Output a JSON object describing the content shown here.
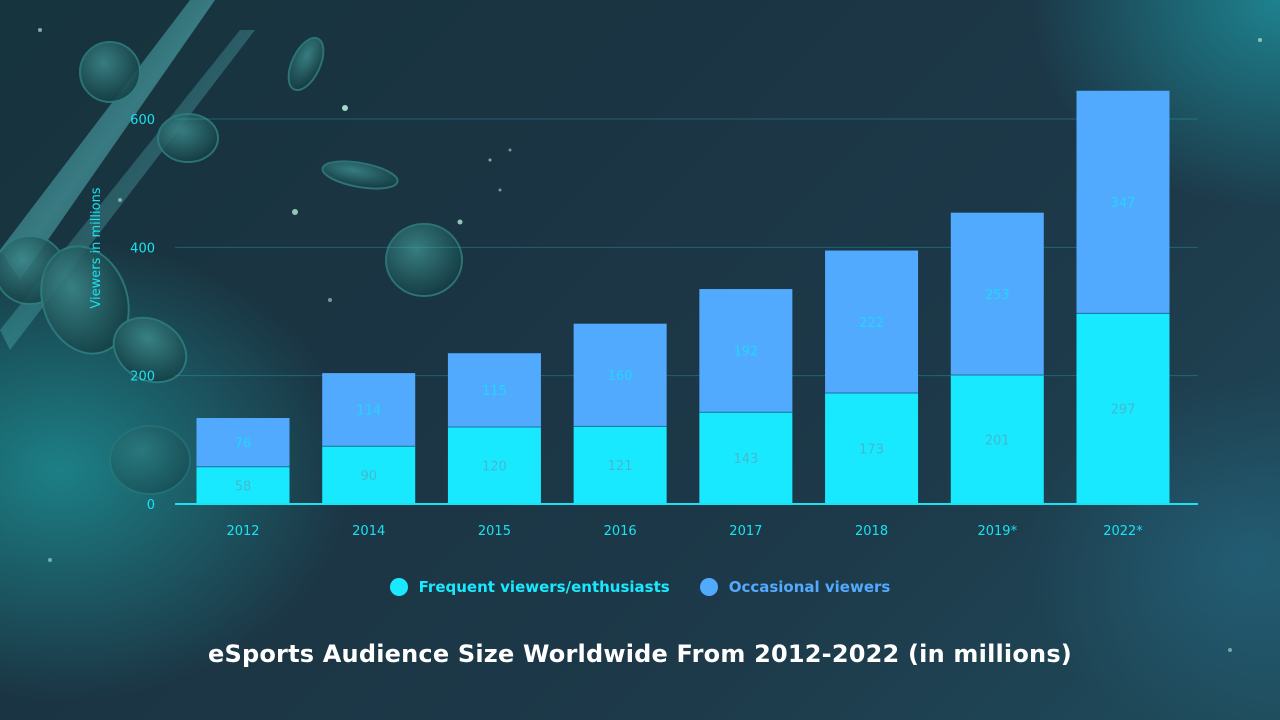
{
  "title": "eSports Audience Size Worldwide From 2012-2022 (in millions)",
  "legend": {
    "frequent": "Frequent viewers/enthusiasts",
    "occasional": "Occasional viewers"
  },
  "colors": {
    "frequent": "#19e9ff",
    "occasional": "#52aaff",
    "axis": "#19e3f0",
    "frequent_label": "#44b8d0",
    "occasional_label": "#21d6ff"
  },
  "chart_data": {
    "type": "bar",
    "stacked": true,
    "categories": [
      "2012",
      "2014",
      "2015",
      "2016",
      "2017",
      "2018",
      "2019*",
      "2022*"
    ],
    "series": [
      {
        "name": "Frequent viewers/enthusiasts",
        "values": [
          58,
          90,
          120,
          121,
          143,
          173,
          201,
          297
        ]
      },
      {
        "name": "Occasional viewers",
        "values": [
          76,
          114,
          115,
          160,
          192,
          222,
          253,
          347
        ]
      }
    ],
    "ylabel": "Viewers in millions",
    "yticks": [
      0,
      200,
      400,
      600
    ],
    "ylim": [
      0,
      650
    ],
    "grid": true,
    "legend_position": "bottom"
  }
}
